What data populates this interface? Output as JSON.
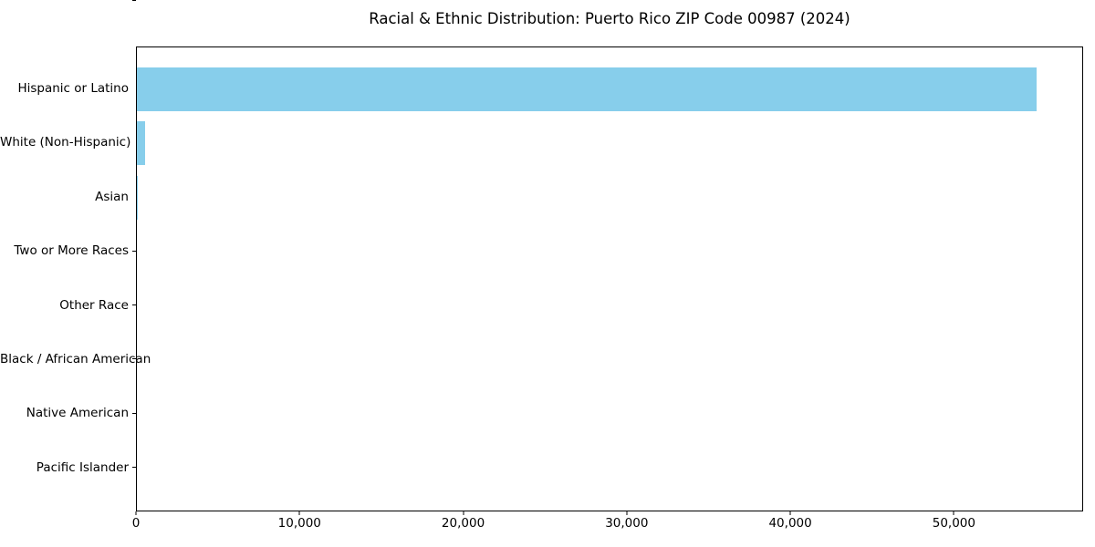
{
  "figure": {
    "background": "#FFFFFF",
    "axis_color": "#000000"
  },
  "chart_data": {
    "type": "bar",
    "orientation": "horizontal",
    "title": "Racial & Ethnic Distribution: Puerto Rico ZIP Code 00987 (2024)",
    "categories": [
      "Hispanic or Latino",
      "White (Non-Hispanic)",
      "Asian",
      "Two or More Races",
      "Other Race",
      "Black / African American",
      "Native American",
      "Pacific Islander"
    ],
    "values": [
      55100,
      500,
      60,
      0,
      0,
      0,
      0,
      0
    ],
    "bar_color": "#87CEEB",
    "xlabel": "",
    "ylabel": "",
    "xlim": [
      0,
      57900
    ],
    "xticks": {
      "values": [
        0,
        10000,
        20000,
        30000,
        40000,
        50000
      ],
      "labels": [
        "0",
        "10,000",
        "20,000",
        "30,000",
        "40,000",
        "50,000"
      ]
    },
    "grid": false,
    "legend": false,
    "sort_order": "descending"
  }
}
